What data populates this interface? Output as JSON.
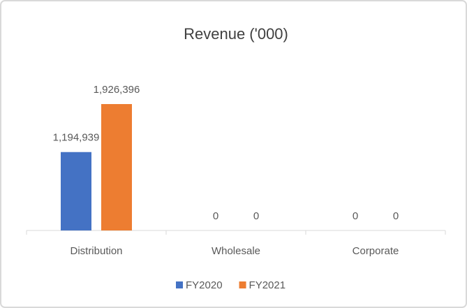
{
  "chart_data": {
    "type": "bar",
    "title": "Revenue ('000)",
    "categories": [
      "Distribution",
      "Wholesale",
      "Corporate"
    ],
    "series": [
      {
        "name": "FY2020",
        "color": "#4472c4",
        "values": [
          1194939,
          0,
          0
        ],
        "value_labels": [
          "1,194,939",
          "0",
          "0"
        ]
      },
      {
        "name": "FY2021",
        "color": "#ed7d31",
        "values": [
          1926396,
          0,
          0
        ],
        "value_labels": [
          "1,926,396",
          "0",
          "0"
        ]
      }
    ],
    "legend": "bottom"
  }
}
